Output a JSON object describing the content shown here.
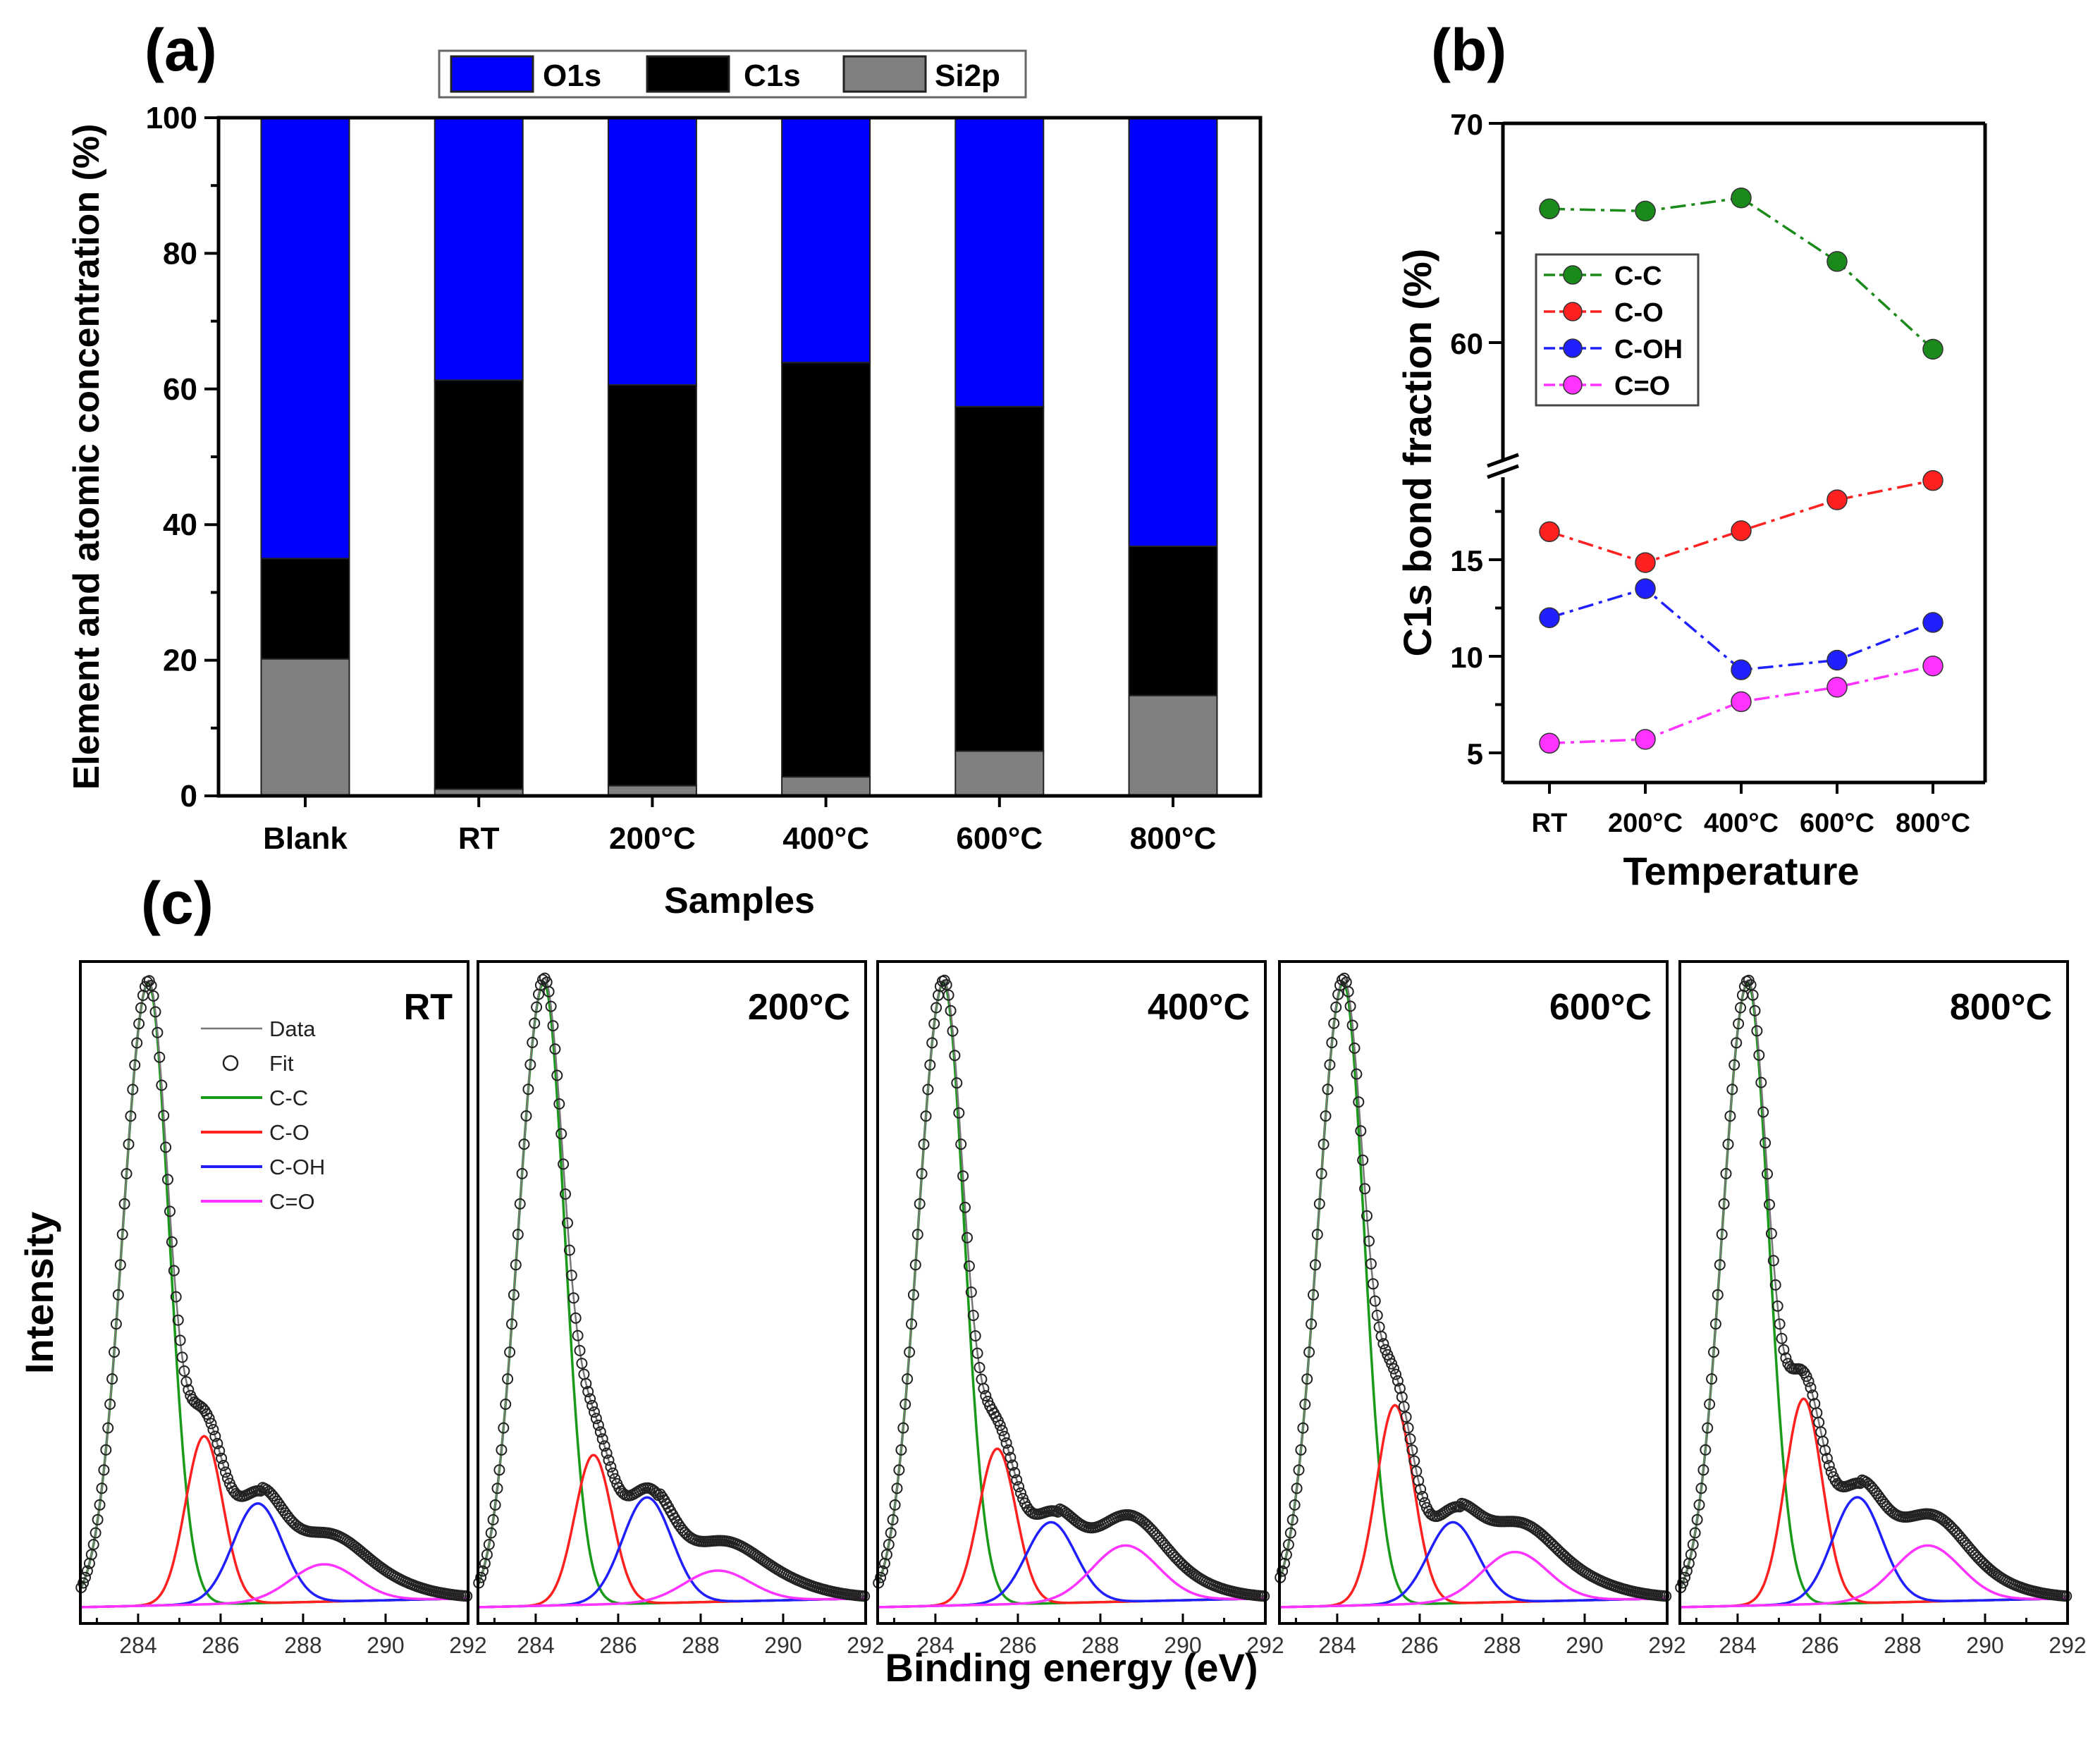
{
  "panel_labels": {
    "a": "(a)",
    "b": "(b)",
    "c": "(c)"
  },
  "chart_data": [
    {
      "id": "a",
      "type": "bar",
      "stacked": true,
      "xlabel": "Samples",
      "ylabel": "Element and atomic concentration (%)",
      "ylim": [
        0,
        100
      ],
      "yticks": [
        0,
        20,
        40,
        60,
        80,
        100
      ],
      "categories": [
        "Blank",
        "RT",
        "200°C",
        "400°C",
        "600°C",
        "800°C"
      ],
      "legend_position": "top-center",
      "series": [
        {
          "name": "Si2p",
          "color": "#808080",
          "values": [
            20.2,
            1.0,
            1.5,
            2.8,
            6.6,
            14.8
          ]
        },
        {
          "name": "C1s",
          "color": "#000000",
          "values": [
            14.8,
            60.3,
            59.1,
            61.1,
            50.8,
            22.0
          ]
        },
        {
          "name": "O1s",
          "color": "#0000ff",
          "values": [
            65.0,
            38.7,
            39.4,
            36.1,
            42.6,
            63.2
          ]
        }
      ],
      "legend_order": [
        "O1s",
        "C1s",
        "Si2p"
      ]
    },
    {
      "id": "b",
      "type": "line",
      "xlabel": "Temperature",
      "ylabel": "C1s bond fraction (%)",
      "categories": [
        "RT",
        "200°C",
        "400°C",
        "600°C",
        "800°C"
      ],
      "y_axis_break": true,
      "ylim_lower": [
        3,
        19.7
      ],
      "ylim_upper": [
        54.2,
        70
      ],
      "yticks_labels": [
        "5",
        "10",
        "15",
        "60",
        "70"
      ],
      "legend_position": "top-left",
      "series": [
        {
          "name": "C-C",
          "color": "#1a8a1a",
          "values": [
            66.1,
            66.0,
            66.6,
            63.7,
            59.7
          ]
        },
        {
          "name": "C-O",
          "color": "#ff2020",
          "values": [
            16.45,
            14.85,
            16.5,
            18.1,
            19.1
          ]
        },
        {
          "name": "C-OH",
          "color": "#2020ff",
          "values": [
            12.0,
            13.5,
            9.3,
            9.8,
            11.75
          ]
        },
        {
          "name": "C=O",
          "color": "#ff33ff",
          "values": [
            5.5,
            5.7,
            7.65,
            8.4,
            9.5
          ]
        }
      ]
    },
    {
      "id": "c",
      "type": "line",
      "xlabel": "Binding energy (eV)",
      "ylabel": "Intensity",
      "xlim": [
        282.6,
        292
      ],
      "xticks": [
        284,
        286,
        288,
        290,
        292
      ],
      "legend": [
        {
          "name": "Data",
          "color": "#777777",
          "style": "line"
        },
        {
          "name": "Fit",
          "color": "#222222",
          "style": "circle"
        },
        {
          "name": "C-C",
          "color": "#1a9a1a",
          "style": "line"
        },
        {
          "name": "C-O",
          "color": "#ff2020",
          "style": "line"
        },
        {
          "name": "C-OH",
          "color": "#2020ff",
          "style": "line"
        },
        {
          "name": "C=O",
          "color": "#ff33ff",
          "style": "line"
        }
      ],
      "panels": [
        {
          "title": "RT",
          "components": {
            "C-C": [
              284.25,
              1.0
            ],
            "C-O": [
              285.6,
              0.27
            ],
            "C-OH": [
              286.9,
              0.16
            ],
            "C=O": [
              288.5,
              0.06
            ]
          }
        },
        {
          "title": "200°C",
          "components": {
            "C-C": [
              284.2,
              1.0
            ],
            "C-O": [
              285.4,
              0.24
            ],
            "C-OH": [
              286.7,
              0.17
            ],
            "C=O": [
              288.4,
              0.05
            ]
          }
        },
        {
          "title": "400°C",
          "components": {
            "C-C": [
              284.2,
              1.0
            ],
            "C-O": [
              285.5,
              0.25
            ],
            "C-OH": [
              286.8,
              0.13
            ],
            "C=O": [
              288.6,
              0.09
            ]
          }
        },
        {
          "title": "600°C",
          "components": {
            "C-C": [
              284.15,
              1.0
            ],
            "C-O": [
              285.4,
              0.32
            ],
            "C-OH": [
              286.8,
              0.13
            ],
            "C=O": [
              288.3,
              0.08
            ]
          }
        },
        {
          "title": "800°C",
          "components": {
            "C-C": [
              284.25,
              1.0
            ],
            "C-O": [
              285.6,
              0.33
            ],
            "C-OH": [
              286.9,
              0.17
            ],
            "C=O": [
              288.6,
              0.09
            ]
          }
        }
      ]
    }
  ]
}
